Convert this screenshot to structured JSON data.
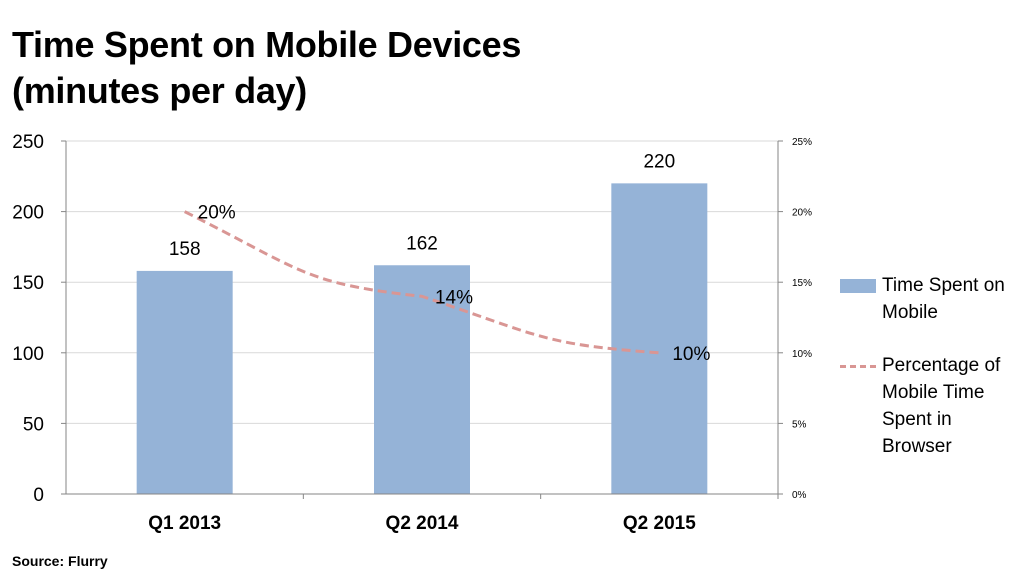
{
  "title_line1": "Time Spent on Mobile Devices",
  "title_line2": "(minutes per day)",
  "source": "Source: Flurry",
  "colors": {
    "bar": "#95b3d7",
    "line": "#d99694",
    "axis": "#868686",
    "grid": "#d9d9d9"
  },
  "chart_data": {
    "type": "bar",
    "categories": [
      "Q1 2013",
      "Q2 2014",
      "Q2 2015"
    ],
    "series": [
      {
        "name": "Time Spent on Mobile",
        "type": "bar",
        "axis": "left",
        "values": [
          158,
          162,
          220
        ],
        "labels": [
          "158",
          "162",
          "220"
        ]
      },
      {
        "name": "Percentage of Mobile Time Spent in Browser",
        "type": "line",
        "style": "dashed",
        "axis": "right",
        "values": [
          20,
          14,
          10
        ],
        "labels": [
          "20%",
          "14%",
          "10%"
        ]
      }
    ],
    "ylim": [
      0,
      250
    ],
    "yticks": [
      "0",
      "50",
      "100",
      "150",
      "200",
      "250"
    ],
    "y2lim": [
      0,
      25
    ],
    "y2ticks": [
      "0%",
      "5%",
      "10%",
      "15%",
      "20%",
      "25%"
    ],
    "grid": true,
    "legend": "right"
  }
}
